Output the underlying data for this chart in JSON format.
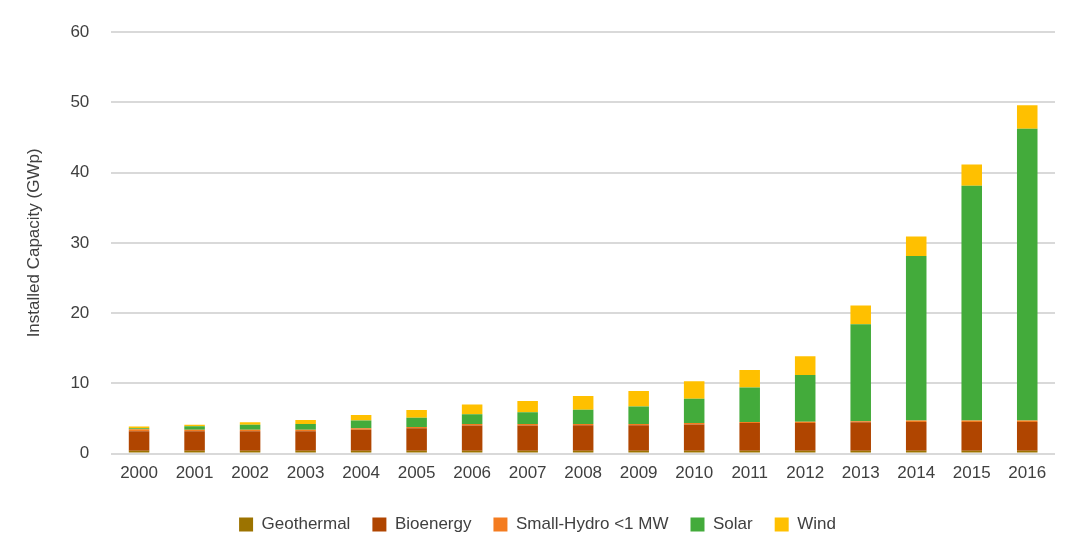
{
  "chart_data": {
    "type": "bar",
    "stacked": true,
    "ylabel": "Installed Capacity (GWp)",
    "categories": [
      "2000",
      "2001",
      "2002",
      "2003",
      "2004",
      "2005",
      "2006",
      "2007",
      "2008",
      "2009",
      "2010",
      "2011",
      "2012",
      "2013",
      "2014",
      "2015",
      "2016"
    ],
    "series": [
      {
        "name": "Geothermal",
        "color": "#9c7300",
        "values": [
          0.4,
          0.4,
          0.4,
          0.4,
          0.4,
          0.4,
          0.4,
          0.4,
          0.4,
          0.4,
          0.4,
          0.4,
          0.4,
          0.4,
          0.4,
          0.4,
          0.4
        ]
      },
      {
        "name": "Bioenergy",
        "color": "#b04500",
        "values": [
          2.8,
          2.8,
          2.8,
          2.8,
          3.0,
          3.2,
          3.6,
          3.6,
          3.65,
          3.65,
          3.75,
          3.95,
          3.95,
          4.05,
          4.1,
          4.1,
          4.1
        ]
      },
      {
        "name": "Small-Hydro <1 MW",
        "color": "#f47c20",
        "values": [
          0.25,
          0.2,
          0.2,
          0.2,
          0.2,
          0.2,
          0.2,
          0.2,
          0.15,
          0.15,
          0.2,
          0.15,
          0.2,
          0.15,
          0.2,
          0.2,
          0.2
        ]
      },
      {
        "name": "Solar",
        "color": "#43ab3b",
        "values": [
          0.15,
          0.5,
          0.7,
          0.8,
          1.1,
          1.3,
          1.4,
          1.7,
          2.05,
          2.5,
          3.45,
          4.9,
          6.65,
          13.8,
          23.45,
          33.45,
          41.55
        ]
      },
      {
        "name": "Wind",
        "color": "#ffc000",
        "values": [
          0.25,
          0.2,
          0.35,
          0.6,
          0.8,
          1.1,
          1.4,
          1.6,
          1.95,
          2.2,
          2.5,
          2.5,
          2.65,
          2.7,
          2.75,
          3.0,
          3.35
        ]
      }
    ],
    "ylim": [
      0,
      60
    ],
    "yticks": [
      0,
      10,
      20,
      30,
      40,
      50,
      60
    ],
    "grid": "y",
    "legend": "bottom"
  }
}
